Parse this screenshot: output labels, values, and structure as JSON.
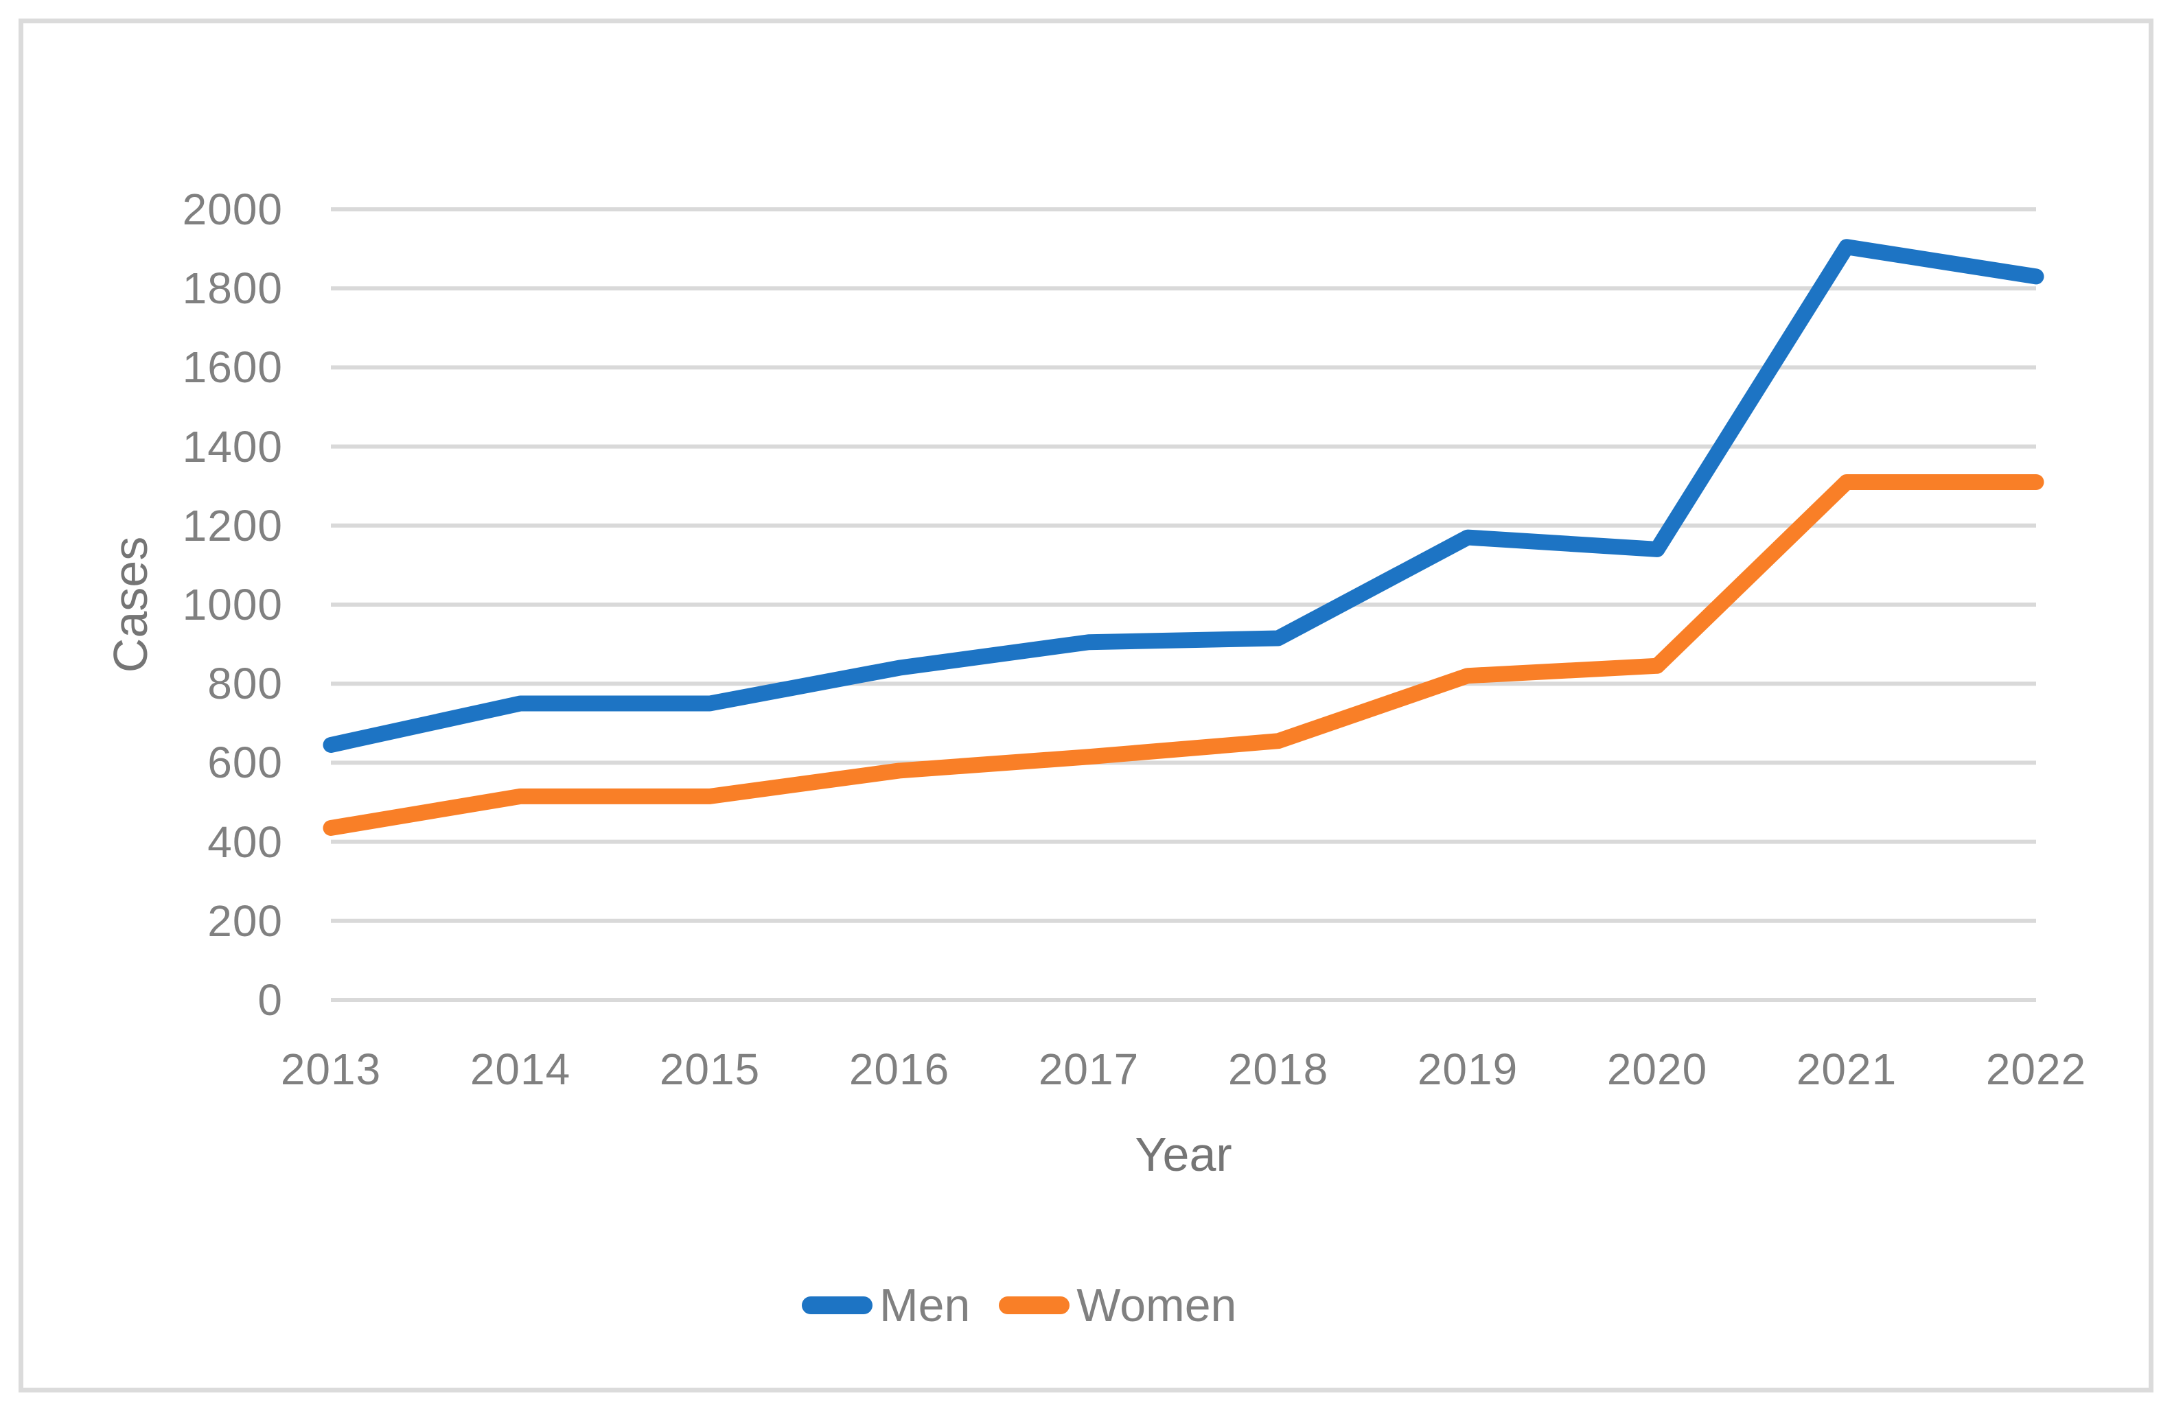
{
  "chart_data": {
    "type": "line",
    "title": "",
    "xlabel": "Year",
    "ylabel": "Cases",
    "categories": [
      "2013",
      "2014",
      "2015",
      "2016",
      "2017",
      "2018",
      "2019",
      "2020",
      "2021",
      "2022"
    ],
    "series": [
      {
        "name": "Men",
        "color": "#1D74C4",
        "values": [
          645,
          750,
          750,
          840,
          905,
          915,
          1170,
          1140,
          1905,
          1830
        ]
      },
      {
        "name": "Women",
        "color": "#F97F27",
        "values": [
          435,
          515,
          515,
          580,
          615,
          655,
          820,
          845,
          1310,
          1310
        ]
      }
    ],
    "ylim": [
      0,
      2000
    ],
    "ytick_step": 200,
    "y_ticks": [
      "0",
      "200",
      "400",
      "600",
      "800",
      "1000",
      "1200",
      "1400",
      "1600",
      "1800",
      "2000"
    ],
    "grid": "horizontal",
    "gridline_color": "#D9D9D9",
    "figure_border_color": "#DBDBDB",
    "background_color": "#FFFFFF",
    "tick_label_color": "#808080",
    "axis_title_color": "#757575",
    "line_width": 23,
    "legend_position": "bottom-center"
  }
}
